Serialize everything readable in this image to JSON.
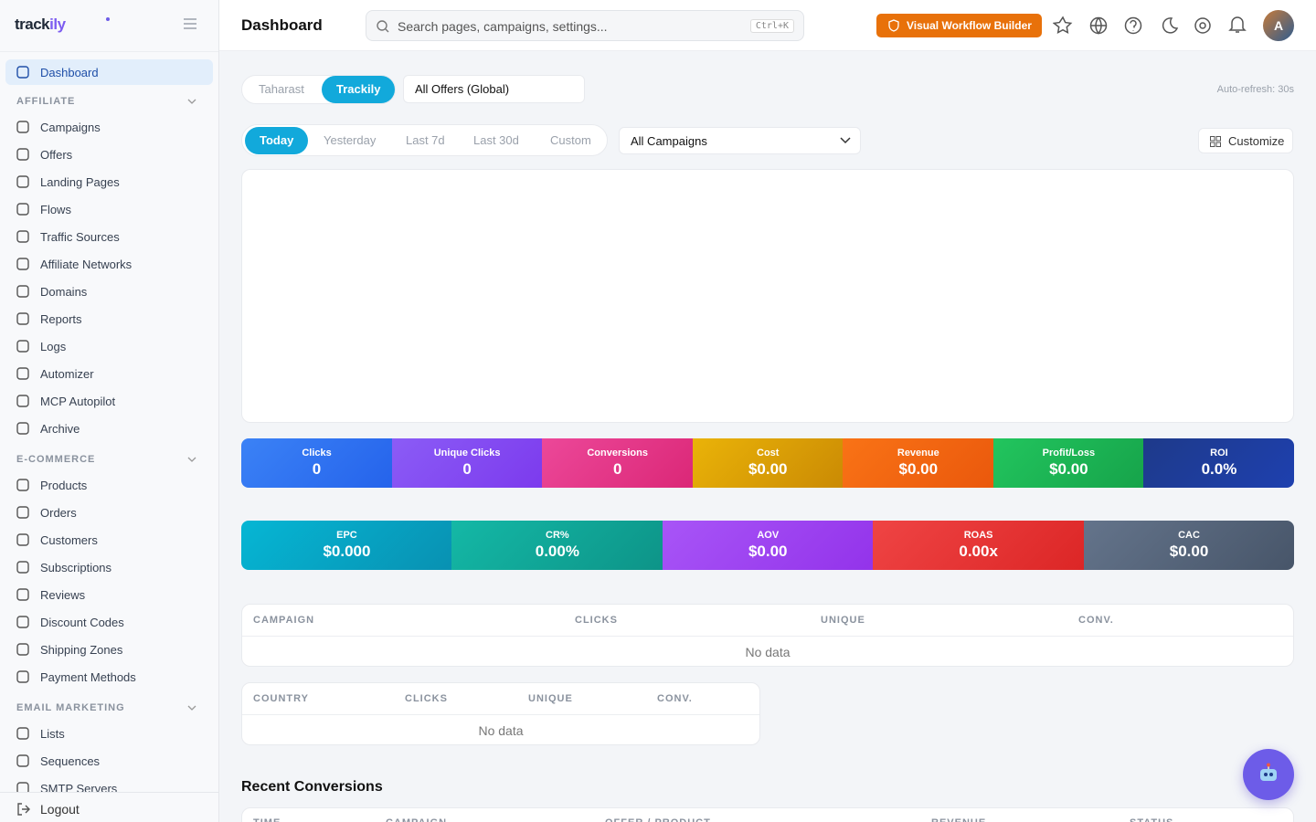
{
  "sidebar": {
    "logo": [
      "track",
      "ily"
    ],
    "nav": [
      {
        "label": "Dashboard",
        "active": true
      }
    ],
    "groups": [
      {
        "heading": "AFFILIATE",
        "items": [
          "Campaigns",
          "Offers",
          "Landing Pages",
          "Flows",
          "Traffic Sources",
          "Affiliate Networks",
          "Domains",
          "Reports",
          "Logs",
          "Automizer",
          "MCP Autopilot",
          "Archive"
        ]
      },
      {
        "heading": "E-COMMERCE",
        "items": [
          "Products",
          "Orders",
          "Customers",
          "Subscriptions",
          "Reviews",
          "Discount Codes",
          "Shipping Zones",
          "Payment Methods"
        ]
      },
      {
        "heading": "EMAIL MARKETING",
        "items": [
          "Lists",
          "Sequences",
          "SMTP Servers"
        ]
      }
    ],
    "logout": "Logout"
  },
  "header": {
    "title": "Dashboard",
    "search_placeholder": "Search pages, campaigns, settings...",
    "shortcut": "Ctrl+K",
    "workflow_button": "Visual Workflow Builder",
    "avatar": "A"
  },
  "filters": {
    "workspaces": [
      "Taharast",
      "Trackily"
    ],
    "active_workspace": 1,
    "offer_select": "All Offers (Global)",
    "auto_refresh": "Auto-refresh: 30s",
    "ranges": [
      "Today",
      "Yesterday",
      "Last 7d",
      "Last 30d",
      "Custom"
    ],
    "active_range": 0,
    "campaign_select": "All Campaigns",
    "customize": "Customize"
  },
  "metrics": [
    [
      {
        "label": "Clicks",
        "value": "0",
        "color": [
          "#3b82f6",
          "#2563eb"
        ]
      },
      {
        "label": "Unique Clicks",
        "value": "0",
        "color": [
          "#8b5cf6",
          "#7c3aed"
        ]
      },
      {
        "label": "Conversions",
        "value": "0",
        "color": [
          "#ec4899",
          "#db2777"
        ]
      },
      {
        "label": "Cost",
        "value": "$0.00",
        "color": [
          "#eab308",
          "#ca8a04"
        ]
      },
      {
        "label": "Revenue",
        "value": "$0.00",
        "color": [
          "#f97316",
          "#ea580c"
        ]
      },
      {
        "label": "Profit/Loss",
        "value": "$0.00",
        "color": [
          "#22c55e",
          "#16a34a"
        ]
      },
      {
        "label": "ROI",
        "value": "0.0%",
        "color": [
          "#1e3a8a",
          "#1e40af"
        ]
      }
    ],
    [
      {
        "label": "EPC",
        "value": "$0.000",
        "color": [
          "#06b6d4",
          "#0891b2"
        ]
      },
      {
        "label": "CR%",
        "value": "0.00%",
        "color": [
          "#14b8a6",
          "#0d9488"
        ]
      },
      {
        "label": "AOV",
        "value": "$0.00",
        "color": [
          "#a855f7",
          "#9333ea"
        ]
      },
      {
        "label": "ROAS",
        "value": "0.00x",
        "color": [
          "#ef4444",
          "#dc2626"
        ]
      },
      {
        "label": "CAC",
        "value": "$0.00",
        "color": [
          "#64748b",
          "#475569"
        ]
      }
    ]
  ],
  "tables": [
    {
      "columns": [
        "CAMPAIGN",
        "CLICKS",
        "UNIQUE",
        "CONV."
      ],
      "empty": "No data"
    },
    {
      "columns": [
        "COUNTRY",
        "CLICKS",
        "UNIQUE",
        "CONV."
      ],
      "empty": "No data"
    }
  ],
  "recent": {
    "title": "Recent Conversions",
    "columns": [
      "TIME",
      "CAMPAIGN",
      "OFFER / PRODUCT",
      "REVENUE",
      "STATUS"
    ]
  }
}
